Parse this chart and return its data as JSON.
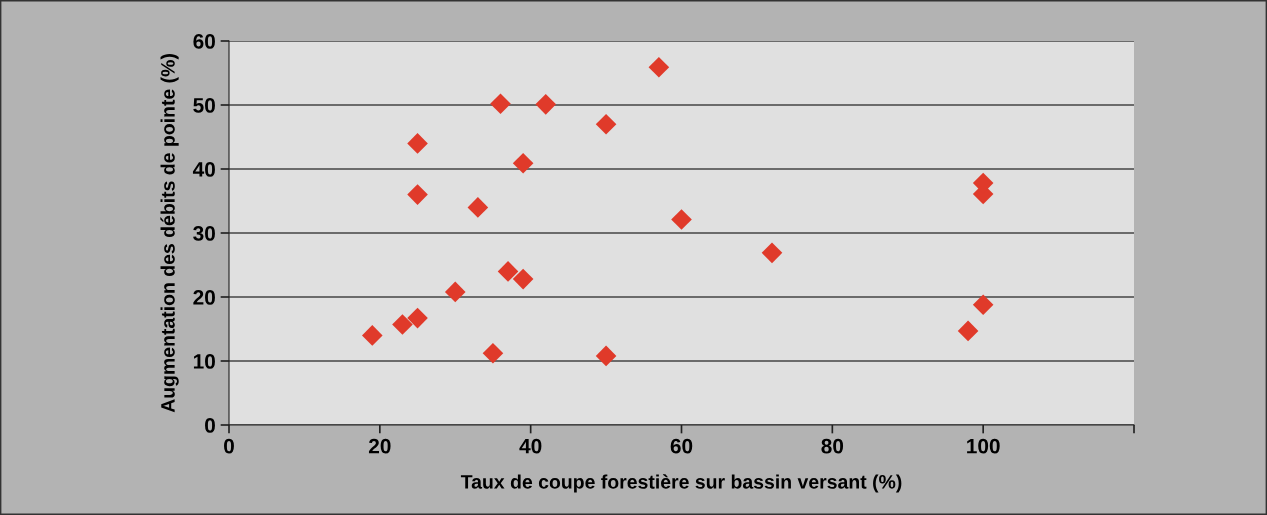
{
  "chart_data": {
    "type": "scatter",
    "xlabel": "Taux de coupe forestière sur bassin versant (%)",
    "ylabel": "Augmentation des débits de pointe (%)",
    "x": [
      19,
      23,
      25,
      25,
      25,
      30,
      33,
      35,
      36,
      37,
      39,
      39,
      42,
      50,
      50,
      57,
      60,
      72,
      98,
      100,
      100,
      100
    ],
    "values": [
      14,
      15.7,
      16.7,
      44,
      36,
      20.8,
      34,
      11.2,
      50.2,
      24,
      40.9,
      22.8,
      50.1,
      47,
      10.8,
      55.9,
      32.1,
      26.9,
      14.7,
      18.8,
      36.1,
      37.8
    ],
    "color": "#e03a2a",
    "marker": "diamond",
    "xlim": [
      0,
      120
    ],
    "xticks": [
      0,
      20,
      40,
      60,
      80,
      100,
      {
        "value": 120,
        "label": null
      }
    ],
    "ylim": [
      0,
      60
    ],
    "yticks": [
      0,
      10,
      20,
      30,
      40,
      50,
      60
    ],
    "grid": "y"
  }
}
